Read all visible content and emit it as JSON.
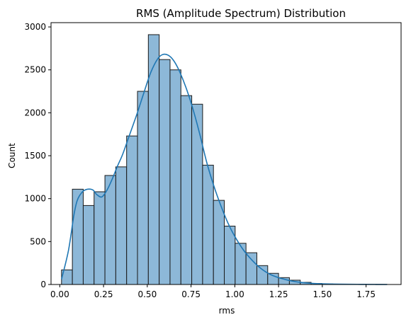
{
  "chart_data": {
    "type": "bar",
    "title": "RMS (Amplitude Spectrum) Distribution",
    "xlabel": "rms",
    "ylabel": "Count",
    "xlim": [
      -0.05,
      1.95
    ],
    "ylim": [
      0,
      3050
    ],
    "xticks": [
      0.0,
      0.25,
      0.5,
      0.75,
      1.0,
      1.25,
      1.5,
      1.75
    ],
    "xtick_labels": [
      "0.00",
      "0.25",
      "0.50",
      "0.75",
      "1.00",
      "1.25",
      "1.50",
      "1.75"
    ],
    "yticks": [
      0,
      500,
      1000,
      1500,
      2000,
      2500,
      3000
    ],
    "ytick_labels": [
      "0",
      "500",
      "1000",
      "1500",
      "2000",
      "2500",
      "3000"
    ],
    "grid": false,
    "bar_color": "#8db8d8",
    "edge_color": "#1a1a1a",
    "kde_color": "#1f77b4",
    "bins": [
      {
        "x0": 0.01,
        "x1": 0.072,
        "count": 170
      },
      {
        "x0": 0.072,
        "x1": 0.134,
        "count": 1110
      },
      {
        "x0": 0.134,
        "x1": 0.196,
        "count": 920
      },
      {
        "x0": 0.196,
        "x1": 0.258,
        "count": 1080
      },
      {
        "x0": 0.258,
        "x1": 0.32,
        "count": 1270
      },
      {
        "x0": 0.32,
        "x1": 0.382,
        "count": 1370
      },
      {
        "x0": 0.382,
        "x1": 0.444,
        "count": 1730
      },
      {
        "x0": 0.444,
        "x1": 0.506,
        "count": 2250
      },
      {
        "x0": 0.506,
        "x1": 0.568,
        "count": 2910
      },
      {
        "x0": 0.568,
        "x1": 0.63,
        "count": 2620
      },
      {
        "x0": 0.63,
        "x1": 0.692,
        "count": 2500
      },
      {
        "x0": 0.692,
        "x1": 0.754,
        "count": 2200
      },
      {
        "x0": 0.754,
        "x1": 0.816,
        "count": 2100
      },
      {
        "x0": 0.816,
        "x1": 0.878,
        "count": 1390
      },
      {
        "x0": 0.878,
        "x1": 0.94,
        "count": 980
      },
      {
        "x0": 0.94,
        "x1": 1.002,
        "count": 680
      },
      {
        "x0": 1.002,
        "x1": 1.064,
        "count": 480
      },
      {
        "x0": 1.064,
        "x1": 1.126,
        "count": 370
      },
      {
        "x0": 1.126,
        "x1": 1.188,
        "count": 220
      },
      {
        "x0": 1.188,
        "x1": 1.25,
        "count": 130
      },
      {
        "x0": 1.25,
        "x1": 1.312,
        "count": 80
      },
      {
        "x0": 1.312,
        "x1": 1.374,
        "count": 50
      },
      {
        "x0": 1.374,
        "x1": 1.436,
        "count": 25
      },
      {
        "x0": 1.436,
        "x1": 1.498,
        "count": 12
      },
      {
        "x0": 1.498,
        "x1": 1.56,
        "count": 6
      },
      {
        "x0": 1.56,
        "x1": 1.622,
        "count": 3
      },
      {
        "x0": 1.622,
        "x1": 1.684,
        "count": 2
      },
      {
        "x0": 1.684,
        "x1": 1.746,
        "count": 1
      },
      {
        "x0": 1.746,
        "x1": 1.808,
        "count": 1
      },
      {
        "x0": 1.808,
        "x1": 1.87,
        "count": 1
      }
    ],
    "kde": {
      "x": [
        0.01,
        0.05,
        0.08,
        0.1,
        0.13,
        0.16,
        0.19,
        0.21,
        0.24,
        0.27,
        0.3,
        0.33,
        0.36,
        0.4,
        0.44,
        0.48,
        0.52,
        0.56,
        0.59,
        0.62,
        0.65,
        0.68,
        0.72,
        0.76,
        0.8,
        0.84,
        0.88,
        0.92,
        0.96,
        1.0,
        1.05,
        1.1,
        1.15,
        1.2,
        1.25,
        1.3,
        1.35,
        1.4,
        1.45,
        1.5,
        1.6,
        1.7,
        1.8,
        1.87
      ],
      "y": [
        60,
        400,
        800,
        980,
        1080,
        1110,
        1100,
        1050,
        1020,
        1100,
        1230,
        1380,
        1520,
        1750,
        1980,
        2230,
        2470,
        2630,
        2680,
        2670,
        2610,
        2500,
        2300,
        2050,
        1750,
        1420,
        1150,
        920,
        720,
        560,
        400,
        280,
        185,
        120,
        80,
        52,
        32,
        20,
        12,
        8,
        4,
        2,
        1,
        0
      ]
    }
  }
}
